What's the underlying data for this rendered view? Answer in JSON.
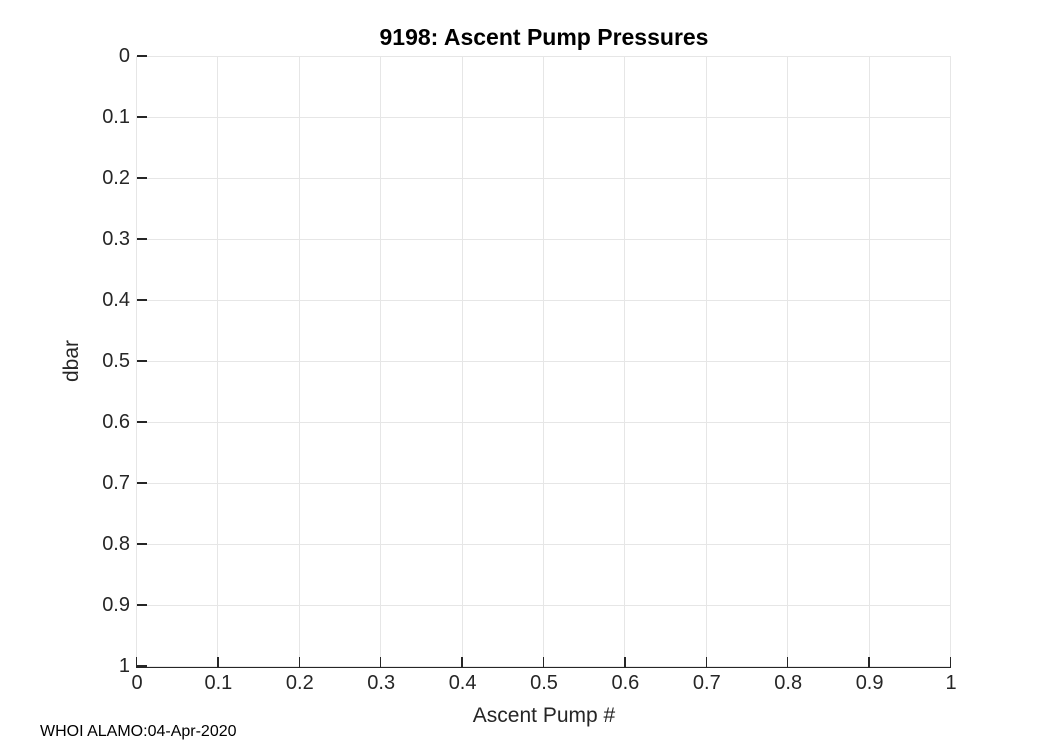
{
  "figure": {
    "footer": "WHOI ALAMO:04-Apr-2020",
    "background": "#ffffff"
  },
  "chart_data": {
    "type": "line",
    "title": "9198: Ascent Pump Pressures",
    "xlabel": "Ascent Pump #",
    "ylabel": "dbar",
    "xlim": [
      0,
      1
    ],
    "ylim": [
      0,
      1
    ],
    "y_axis_reversed": true,
    "grid": true,
    "x_ticks": [
      0,
      0.1,
      0.2,
      0.3,
      0.4,
      0.5,
      0.6,
      0.7,
      0.8,
      0.9,
      1
    ],
    "x_tick_labels": [
      "0",
      "0.1",
      "0.2",
      "0.3",
      "0.4",
      "0.5",
      "0.6",
      "0.7",
      "0.8",
      "0.9",
      "1"
    ],
    "y_ticks": [
      0,
      0.1,
      0.2,
      0.3,
      0.4,
      0.5,
      0.6,
      0.7,
      0.8,
      0.9,
      1
    ],
    "y_tick_labels": [
      "0",
      "0.1",
      "0.2",
      "0.3",
      "0.4",
      "0.5",
      "0.6",
      "0.7",
      "0.8",
      "0.9",
      "1"
    ],
    "series": []
  },
  "colors": {
    "axis_line": "#262626",
    "tick_label": "#262626",
    "grid_line": "#e6e6e6",
    "title": "#000000",
    "footer": "#000000"
  }
}
